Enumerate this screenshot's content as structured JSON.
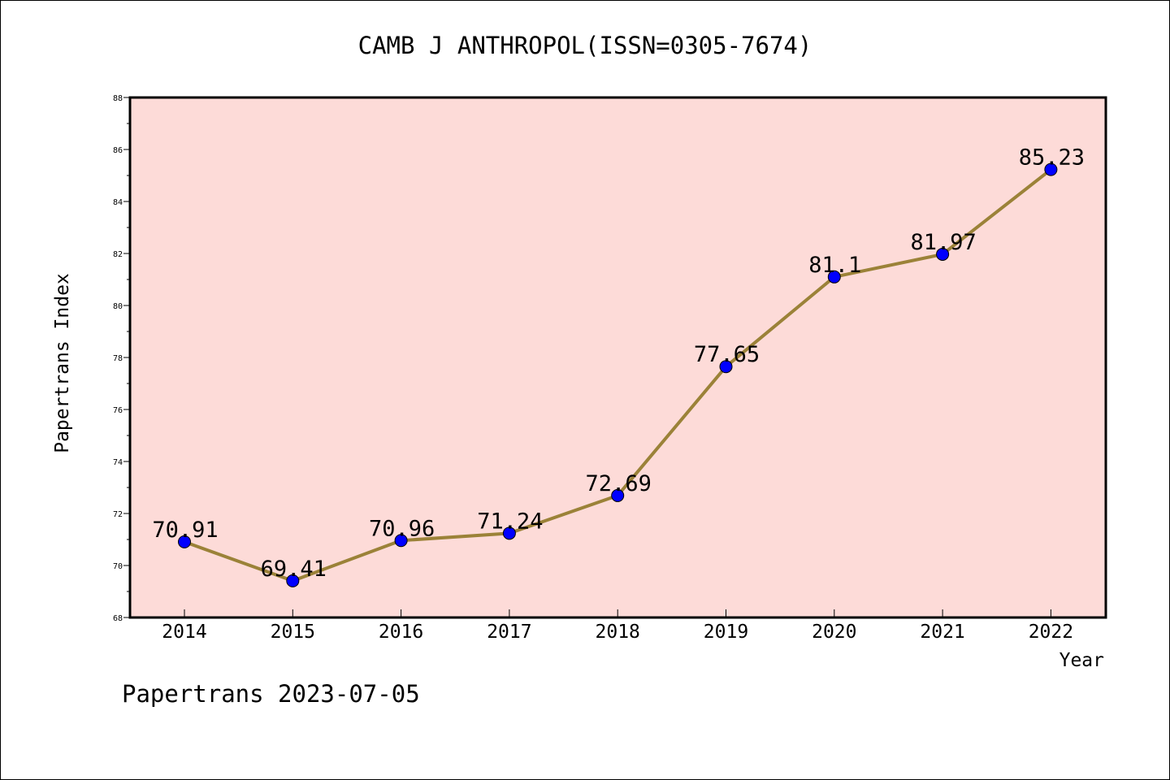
{
  "chart_data": {
    "type": "line",
    "title": "CAMB J ANTHROPOL(ISSN=0305-7674)",
    "xlabel": "Year",
    "ylabel": "Papertrans Index",
    "categories": [
      "2014",
      "2015",
      "2016",
      "2017",
      "2018",
      "2019",
      "2020",
      "2021",
      "2022"
    ],
    "series": [
      {
        "values": [
          70.91,
          69.41,
          70.96,
          71.24,
          72.69,
          77.65,
          81.1,
          81.97,
          85.23
        ],
        "labels": [
          "70.91",
          "69.41",
          "70.96",
          "71.24",
          "72.69",
          "77.65",
          "81.1",
          "81.97",
          "85.23"
        ],
        "line_color": "#9b8238",
        "marker_color": "#0000ff"
      }
    ],
    "ylim": [
      68,
      88
    ],
    "yticks": [
      "68",
      "70",
      "72",
      "74",
      "76",
      "78",
      "80",
      "82",
      "84",
      "86",
      "88"
    ],
    "plot_background": "#fddbd8",
    "grid": false,
    "legend": "none"
  },
  "footer": "Papertrans 2023-07-05"
}
